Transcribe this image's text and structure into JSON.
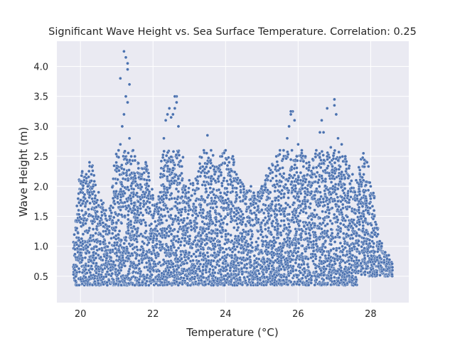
{
  "chart_data": {
    "type": "scatter",
    "title": "Significant Wave Height vs. Sea Surface Temperature. Correlation: 0.25",
    "xlabel": "Temperature (°C)",
    "ylabel": "Wave Height (m)",
    "xlim": [
      19.35,
      29.05
    ],
    "ylim": [
      0.06,
      4.42
    ],
    "xticks": [
      20,
      22,
      24,
      26,
      28
    ],
    "xtick_labels": [
      "20",
      "22",
      "24",
      "26",
      "28"
    ],
    "yticks": [
      0.5,
      1.0,
      1.5,
      2.0,
      2.5,
      3.0,
      3.5,
      4.0
    ],
    "ytick_labels": [
      "0.5",
      "1.0",
      "1.5",
      "2.0",
      "2.5",
      "3.0",
      "3.5",
      "4.0"
    ],
    "grid": true,
    "legend": "none",
    "colors": {
      "marker": "#4c72b0",
      "marker_edge": "#ffffff",
      "background": "#eaeaf2",
      "grid": "#ffffff"
    },
    "correlation": 0.25,
    "series": [
      {
        "x": [
          19.85,
          19.9,
          19.95,
          20.0,
          20.05,
          20.1,
          20.15,
          20.2,
          20.25,
          20.3,
          20.35,
          20.4,
          20.5,
          20.6,
          20.7,
          20.8,
          20.9,
          21.0,
          21.05,
          21.1,
          21.15,
          21.2,
          21.25,
          21.3,
          21.35,
          21.4,
          21.45,
          21.5,
          21.6,
          21.7,
          21.8,
          21.9,
          22.0,
          22.1,
          22.2,
          22.3,
          22.35,
          22.4,
          22.45,
          22.5,
          22.55,
          22.6,
          22.65,
          22.7,
          22.8,
          22.9,
          23.0,
          23.1,
          23.2,
          23.3,
          23.4,
          23.5,
          23.6,
          23.7,
          23.8,
          23.9,
          24.0,
          24.1,
          24.2,
          24.3,
          24.4,
          24.5,
          24.6,
          24.7,
          24.8,
          24.9,
          25.0,
          25.1,
          25.2,
          25.3,
          25.4,
          25.5,
          25.6,
          25.7,
          25.75,
          25.8,
          25.85,
          25.9,
          26.0,
          26.1,
          26.2,
          26.3,
          26.4,
          26.5,
          26.6,
          26.65,
          26.7,
          26.8,
          26.9,
          27.0,
          27.05,
          27.1,
          27.2,
          27.3,
          27.4,
          27.5,
          27.6,
          27.7,
          27.8,
          27.9,
          28.0,
          28.1,
          28.2,
          28.3,
          28.4,
          28.5,
          28.6,
          21.2,
          21.25,
          21.3,
          21.3,
          21.1,
          21.35,
          22.6,
          22.65,
          27.0,
          26.8,
          25.8,
          27.8,
          19.85,
          20.0,
          20.5,
          21.5
        ],
        "y": [
          0.95,
          1.3,
          1.6,
          1.9,
          2.25,
          2.1,
          2.05,
          2.0,
          2.4,
          2.2,
          2.0,
          1.8,
          1.9,
          1.7,
          1.6,
          1.5,
          1.8,
          2.3,
          2.6,
          2.7,
          3.0,
          3.2,
          3.5,
          3.4,
          2.8,
          2.5,
          2.6,
          2.5,
          2.3,
          2.2,
          2.4,
          2.1,
          1.8,
          1.7,
          1.9,
          2.8,
          3.1,
          3.2,
          3.3,
          3.15,
          3.2,
          3.3,
          3.5,
          3.0,
          2.1,
          2.0,
          2.1,
          2.05,
          2.1,
          2.3,
          2.6,
          2.85,
          2.6,
          2.2,
          2.3,
          2.5,
          2.6,
          2.4,
          2.5,
          2.2,
          2.1,
          2.0,
          1.9,
          2.0,
          1.8,
          1.9,
          2.0,
          2.1,
          2.3,
          2.35,
          2.5,
          2.6,
          2.6,
          2.8,
          3.0,
          3.2,
          3.25,
          3.1,
          2.7,
          2.6,
          2.5,
          2.4,
          2.2,
          2.6,
          2.9,
          3.1,
          2.9,
          2.5,
          2.65,
          3.45,
          3.2,
          2.8,
          2.7,
          2.5,
          2.3,
          2.2,
          2.1,
          2.2,
          2.1,
          2.4,
          2.0,
          1.5,
          1.2,
          1.0,
          0.9,
          0.85,
          0.65,
          4.25,
          4.15,
          4.05,
          3.95,
          3.8,
          3.7,
          3.5,
          3.4,
          3.35,
          3.3,
          3.25,
          2.55,
          0.6,
          0.45,
          0.38,
          0.35
        ]
      }
    ]
  }
}
